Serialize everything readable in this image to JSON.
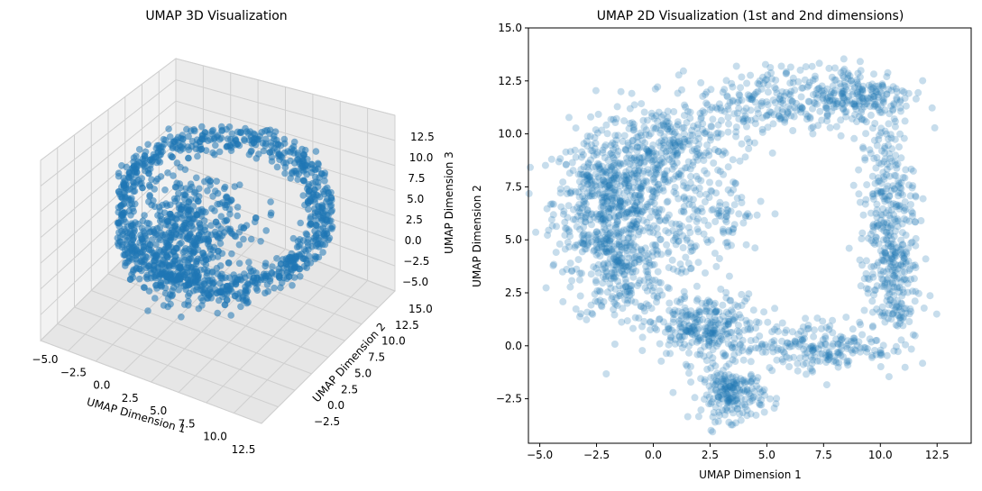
{
  "chart_data": [
    {
      "type": "scatter3d",
      "title": "UMAP 3D Visualization",
      "xlabel": "UMAP Dimension 1",
      "ylabel": "UMAP Dimension 2",
      "zlabel": "UMAP Dimension 3",
      "xlim": [
        -5.5,
        14
      ],
      "ylim": [
        -4,
        15
      ],
      "zlim": [
        -5.5,
        14
      ],
      "xticks": [
        "−5.0",
        "−2.5",
        "0.0",
        "2.5",
        "5.0",
        "7.5",
        "10.0",
        "12.5"
      ],
      "yticks": [
        "−2.5",
        "0.0",
        "2.5",
        "5.0",
        "7.5",
        "10.0",
        "12.5",
        "15.0"
      ],
      "zticks": [
        "−5.0",
        "−2.5",
        "0.0",
        "2.5",
        "5.0",
        "7.5",
        "10.0",
        "12.5"
      ],
      "marker_color": "#1f77b4",
      "pane_color": "#f2f2f2",
      "grid": true,
      "description_points": "dense ring-like point cloud"
    },
    {
      "type": "scatter",
      "title": "UMAP 2D Visualization (1st and 2nd dimensions)",
      "xlabel": "UMAP Dimension 1",
      "ylabel": "UMAP Dimension 2",
      "xlim": [
        -5.5,
        14
      ],
      "ylim": [
        -4.6,
        15
      ],
      "xticks": [
        -5.0,
        -2.5,
        0.0,
        2.5,
        5.0,
        7.5,
        10.0,
        12.5
      ],
      "yticks": [
        -2.5,
        0.0,
        2.5,
        5.0,
        7.5,
        10.0,
        12.5,
        15.0
      ],
      "xtick_labels": [
        "−5.0",
        "−2.5",
        "0.0",
        "2.5",
        "5.0",
        "7.5",
        "10.0",
        "12.5"
      ],
      "ytick_labels": [
        "−2.5",
        "0.0",
        "2.5",
        "5.0",
        "7.5",
        "10.0",
        "12.5",
        "15.0"
      ],
      "marker_color": "#1f77b4",
      "marker_alpha": 0.25,
      "grid": false,
      "clusters": [
        {
          "cx": -2.0,
          "cy": 6.8,
          "sx": 1.2,
          "sy": 1.6,
          "n": 520
        },
        {
          "cx": -1.5,
          "cy": 3.5,
          "sx": 1.0,
          "sy": 1.2,
          "n": 220
        },
        {
          "cx": 2.2,
          "cy": 0.8,
          "sx": 1.2,
          "sy": 0.8,
          "n": 300
        },
        {
          "cx": 3.5,
          "cy": -2.3,
          "sx": 0.7,
          "sy": 0.6,
          "n": 200
        },
        {
          "cx": 0.8,
          "cy": 9.5,
          "sx": 1.5,
          "sy": 1.0,
          "n": 260
        },
        {
          "cx": 5.0,
          "cy": 11.5,
          "sx": 1.5,
          "sy": 0.8,
          "n": 200
        },
        {
          "cx": 9.0,
          "cy": 11.8,
          "sx": 1.2,
          "sy": 0.7,
          "n": 220
        },
        {
          "cx": 10.3,
          "cy": 7.0,
          "sx": 0.6,
          "sy": 1.8,
          "n": 220
        },
        {
          "cx": 10.5,
          "cy": 3.0,
          "sx": 0.6,
          "sy": 1.5,
          "n": 200
        },
        {
          "cx": 7.5,
          "cy": 0.0,
          "sx": 1.5,
          "sy": 0.6,
          "n": 200
        },
        {
          "cx": 0.0,
          "cy": 6.5,
          "sx": 1.2,
          "sy": 2.0,
          "n": 200
        },
        {
          "cx": 3.0,
          "cy": 6.0,
          "sx": 1.0,
          "sy": 1.0,
          "n": 90
        }
      ]
    }
  ]
}
